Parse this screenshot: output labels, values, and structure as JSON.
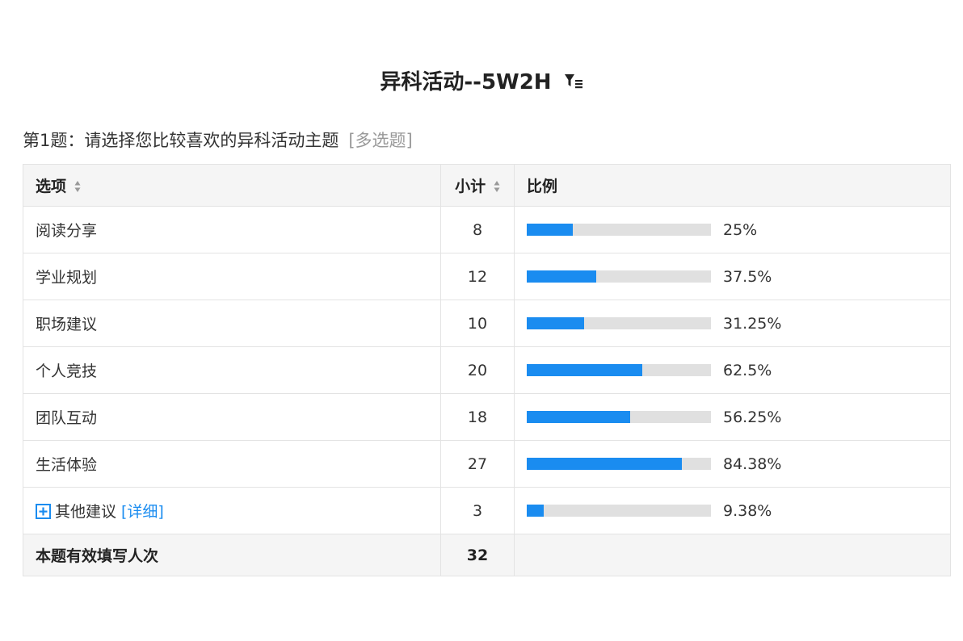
{
  "survey": {
    "title": "异科活动--5W2H",
    "filter_icon": "filter-list-icon"
  },
  "question": {
    "label": "第1题：请选择您比较喜欢的异科活动主题",
    "type": "[多选题]"
  },
  "table": {
    "headers": {
      "option": "选项",
      "count": "小计",
      "ratio": "比例"
    },
    "rows": [
      {
        "label": "阅读分享",
        "count": "8",
        "percent_text": "25%",
        "percent": 25
      },
      {
        "label": "学业规划",
        "count": "12",
        "percent_text": "37.5%",
        "percent": 37.5
      },
      {
        "label": "职场建议",
        "count": "10",
        "percent_text": "31.25%",
        "percent": 31.25
      },
      {
        "label": "个人竞技",
        "count": "20",
        "percent_text": "62.5%",
        "percent": 62.5
      },
      {
        "label": "团队互动",
        "count": "18",
        "percent_text": "56.25%",
        "percent": 56.25
      },
      {
        "label": "生活体验",
        "count": "27",
        "percent_text": "84.38%",
        "percent": 84.38
      }
    ],
    "other_row": {
      "label": "其他建议",
      "detail_link": "[详细]",
      "count": "3",
      "percent_text": "9.38%",
      "percent": 9.38
    },
    "footer": {
      "label": "本题有效填写人次",
      "count": "32"
    }
  },
  "colors": {
    "bar_fill": "#1a8cf0",
    "bar_track": "#e0e0e0",
    "link": "#1a8cf0"
  }
}
